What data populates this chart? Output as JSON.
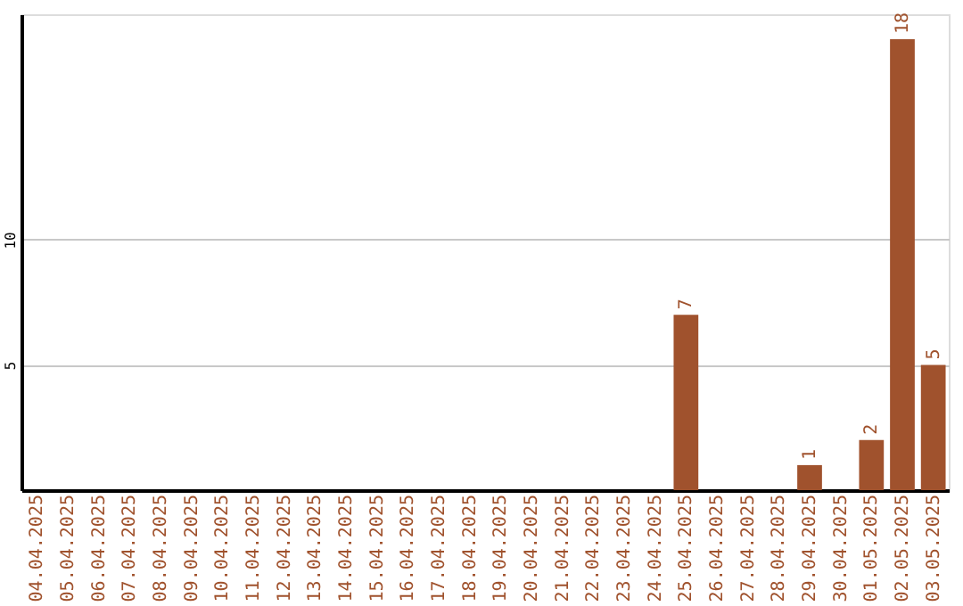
{
  "chart_data": {
    "type": "bar",
    "categories": [
      "04.04.2025",
      "05.04.2025",
      "06.04.2025",
      "07.04.2025",
      "08.04.2025",
      "09.04.2025",
      "10.04.2025",
      "11.04.2025",
      "12.04.2025",
      "13.04.2025",
      "14.04.2025",
      "15.04.2025",
      "16.04.2025",
      "17.04.2025",
      "18.04.2025",
      "19.04.2025",
      "20.04.2025",
      "21.04.2025",
      "22.04.2025",
      "23.04.2025",
      "24.04.2025",
      "25.04.2025",
      "26.04.2025",
      "27.04.2025",
      "28.04.2025",
      "29.04.2025",
      "30.04.2025",
      "01.05.2025",
      "02.05.2025",
      "03.05.2025"
    ],
    "values": [
      0,
      0,
      0,
      0,
      0,
      0,
      0,
      0,
      0,
      0,
      0,
      0,
      0,
      0,
      0,
      0,
      0,
      0,
      0,
      0,
      0,
      7,
      0,
      0,
      0,
      1,
      0,
      2,
      18,
      5
    ],
    "value_labels": [
      null,
      null,
      null,
      null,
      null,
      null,
      null,
      null,
      null,
      null,
      null,
      null,
      null,
      null,
      null,
      null,
      null,
      null,
      null,
      null,
      null,
      "7",
      null,
      null,
      null,
      "1",
      null,
      "2",
      "18",
      "5"
    ],
    "color": "#a0522d",
    "ylim": [
      0,
      19
    ],
    "yticks": [
      5,
      10
    ],
    "grid": "y"
  }
}
